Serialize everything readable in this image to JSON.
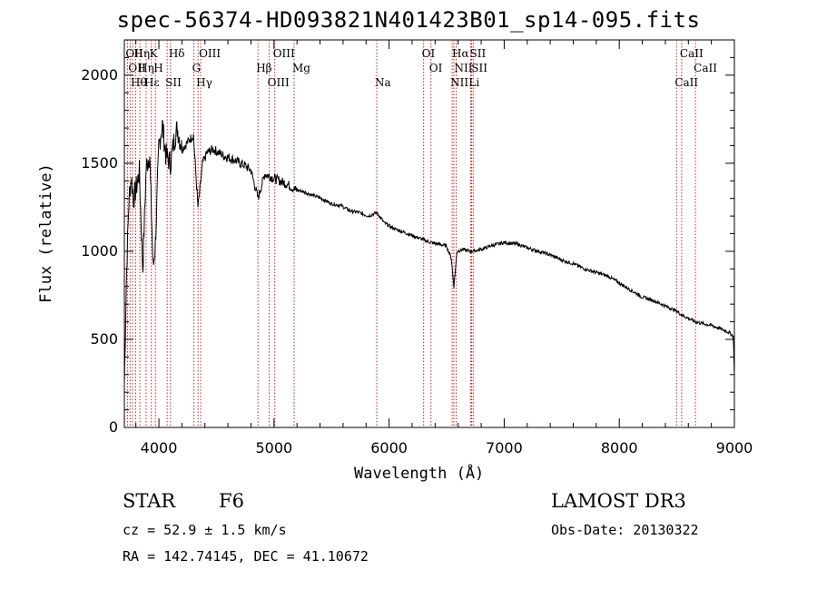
{
  "chart_data": {
    "type": "line",
    "title": "spec-56374-HD093821N401423B01_sp14-095.fits",
    "xlabel": "Wavelength (Å)",
    "ylabel": "Flux (relative)",
    "xlim": [
      3700,
      9000
    ],
    "ylim": [
      0,
      2200
    ],
    "x_ticks": [
      4000,
      5000,
      6000,
      7000,
      8000,
      9000
    ],
    "y_ticks": [
      0,
      500,
      1000,
      1500,
      2000
    ],
    "series": [
      {
        "name": "flux",
        "color": "#000000",
        "x": [
          3700,
          3720,
          3740,
          3760,
          3780,
          3800,
          3830,
          3860,
          3890,
          3920,
          3950,
          3970,
          4000,
          4030,
          4060,
          4101,
          4130,
          4160,
          4200,
          4250,
          4300,
          4340,
          4380,
          4420,
          4470,
          4520,
          4570,
          4620,
          4680,
          4740,
          4800,
          4861,
          4920,
          4980,
          5050,
          5120,
          5180,
          5250,
          5330,
          5410,
          5500,
          5580,
          5660,
          5740,
          5820,
          5893,
          5960,
          6040,
          6120,
          6200,
          6280,
          6360,
          6440,
          6500,
          6540,
          6563,
          6590,
          6640,
          6700,
          6760,
          6820,
          6880,
          6940,
          7000,
          7060,
          7120,
          7200,
          7300,
          7400,
          7500,
          7600,
          7700,
          7800,
          7900,
          8000,
          8100,
          8200,
          8300,
          8400,
          8500,
          8540,
          8600,
          8662,
          8720,
          8800,
          8880,
          8950,
          8990,
          9000
        ],
        "y": [
          250,
          900,
          1300,
          1420,
          1300,
          1350,
          1450,
          900,
          1480,
          1550,
          900,
          1050,
          1600,
          1720,
          1550,
          1500,
          1620,
          1700,
          1580,
          1620,
          1660,
          1250,
          1500,
          1560,
          1580,
          1560,
          1540,
          1530,
          1510,
          1490,
          1460,
          1300,
          1440,
          1420,
          1400,
          1380,
          1350,
          1340,
          1320,
          1300,
          1270,
          1260,
          1230,
          1220,
          1200,
          1220,
          1160,
          1130,
          1110,
          1090,
          1070,
          1050,
          1040,
          1030,
          960,
          800,
          1000,
          1010,
          1000,
          1005,
          1015,
          1030,
          1040,
          1050,
          1045,
          1040,
          1020,
          1000,
          980,
          950,
          930,
          900,
          880,
          860,
          820,
          780,
          740,
          720,
          690,
          660,
          640,
          620,
          600,
          590,
          580,
          560,
          540,
          520,
          300
        ]
      }
    ],
    "line_markers": [
      {
        "wl": 3727,
        "name": "OII"
      },
      {
        "wl": 3750,
        "name": "OII"
      },
      {
        "wl": 3771,
        "name": "Hθ"
      },
      {
        "wl": 3798,
        "name": "Hη"
      },
      {
        "wl": 3835,
        "name": "Hη"
      },
      {
        "wl": 3889,
        "name": "Hε"
      },
      {
        "wl": 3934,
        "name": "K"
      },
      {
        "wl": 3970,
        "name": "H"
      },
      {
        "wl": 4072,
        "name": "SII"
      },
      {
        "wl": 4101,
        "name": "Hδ"
      },
      {
        "wl": 4304,
        "name": "G"
      },
      {
        "wl": 4340,
        "name": "Hγ"
      },
      {
        "wl": 4363,
        "name": "OIII"
      },
      {
        "wl": 4861,
        "name": "Hβ"
      },
      {
        "wl": 4959,
        "name": "OIII"
      },
      {
        "wl": 5007,
        "name": "OIII"
      },
      {
        "wl": 5175,
        "name": "Mg"
      },
      {
        "wl": 5893,
        "name": "Na"
      },
      {
        "wl": 6300,
        "name": "OI"
      },
      {
        "wl": 6364,
        "name": "OI"
      },
      {
        "wl": 6548,
        "name": "NII"
      },
      {
        "wl": 6563,
        "name": "Hα"
      },
      {
        "wl": 6583,
        "name": "NII"
      },
      {
        "wl": 6708,
        "name": "Li"
      },
      {
        "wl": 6717,
        "name": "SII"
      },
      {
        "wl": 6731,
        "name": "SII"
      },
      {
        "wl": 8498,
        "name": "CaII"
      },
      {
        "wl": 8542,
        "name": "CaII"
      },
      {
        "wl": 8662,
        "name": "CaII"
      }
    ]
  },
  "footer": {
    "object_class": "STAR",
    "subclass": "F6",
    "survey": "LAMOST DR3",
    "cz": "cz = 52.9 ± 1.5 km/s",
    "obs_date": "Obs-Date: 20130322",
    "coords": "RA = 142.74145, DEC =  41.10672"
  },
  "colors": {
    "marker_line": "#cc2222",
    "spectrum": "#000000"
  }
}
